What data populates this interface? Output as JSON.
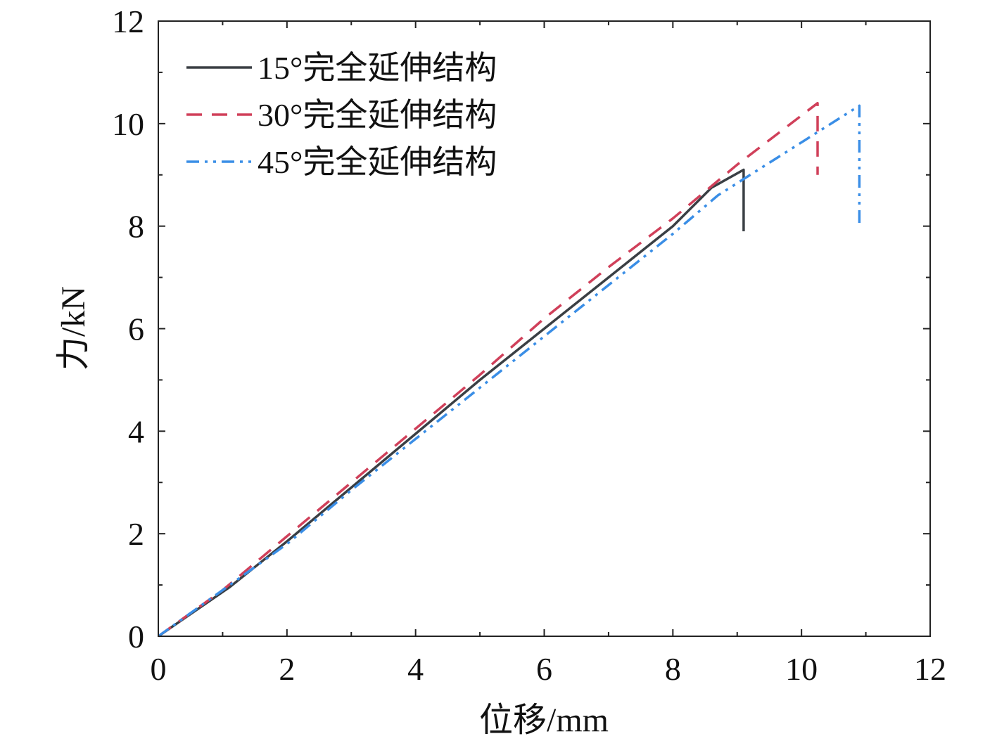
{
  "chart_data": {
    "type": "line",
    "xlabel": "位移/mm",
    "ylabel": "力/kN",
    "xlim": [
      0,
      12
    ],
    "ylim": [
      0,
      12
    ],
    "xticks": [
      0,
      2,
      4,
      6,
      8,
      10,
      12
    ],
    "yticks": [
      0,
      2,
      4,
      6,
      8,
      10,
      12
    ],
    "grid": false,
    "legend_position": "top-left",
    "series": [
      {
        "name": "15°完全延伸结构",
        "color": "#3a3f44",
        "dash": "solid",
        "x": [
          0,
          1.1,
          2,
          3,
          4,
          5,
          6,
          7,
          8,
          8.6,
          9.1,
          9.1
        ],
        "y": [
          0,
          0.95,
          1.85,
          2.9,
          3.95,
          5.0,
          6.0,
          7.0,
          8.0,
          8.75,
          9.1,
          7.9
        ]
      },
      {
        "name": "30°完全延伸结构",
        "color": "#d0405a",
        "dash": "dashed",
        "x": [
          0,
          1,
          2,
          3,
          4,
          5,
          6,
          7,
          8,
          9,
          10.25,
          10.25
        ],
        "y": [
          0,
          0.9,
          1.95,
          3.0,
          4.05,
          5.1,
          6.2,
          7.2,
          8.15,
          9.2,
          10.4,
          9.0
        ]
      },
      {
        "name": "45°完全延伸结构",
        "color": "#3a8ee6",
        "dash": "dash-dot-dot",
        "x": [
          0,
          1,
          2,
          3,
          4,
          5,
          6,
          7,
          8,
          8.7,
          10.9,
          10.9
        ],
        "y": [
          0,
          0.9,
          1.8,
          2.85,
          3.85,
          4.85,
          5.85,
          6.85,
          7.85,
          8.6,
          10.35,
          8.0
        ]
      }
    ]
  }
}
